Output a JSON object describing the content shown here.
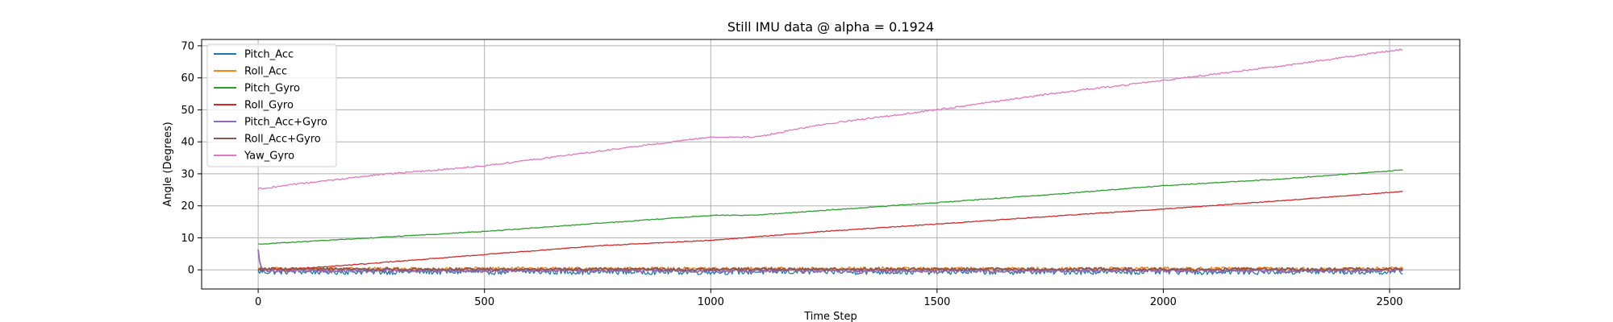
{
  "chart_data": {
    "type": "line",
    "title": "Still IMU data @ alpha = 0.1924",
    "xlabel": "Time Step",
    "ylabel": "Angle (Degrees)",
    "xlim": [
      -125,
      2655
    ],
    "ylim": [
      -6,
      72
    ],
    "xticks": [
      0,
      500,
      1000,
      1500,
      2000,
      2500
    ],
    "yticks": [
      0,
      10,
      20,
      30,
      40,
      50,
      60,
      70
    ],
    "grid": true,
    "legend_position": "upper-left",
    "n_steps": 2530,
    "series": [
      {
        "name": "Pitch_Acc",
        "color": "#1f77b4",
        "noise": 0.9,
        "anchors": [
          [
            0,
            -0.6
          ],
          [
            2530,
            -0.6
          ]
        ]
      },
      {
        "name": "Roll_Acc",
        "color": "#ff7f0e",
        "noise": 0.6,
        "anchors": [
          [
            0,
            0.3
          ],
          [
            2530,
            0.3
          ]
        ]
      },
      {
        "name": "Pitch_Gyro",
        "color": "#2ca02c",
        "noise": 0.12,
        "anchors": [
          [
            0,
            8
          ],
          [
            500,
            12
          ],
          [
            750,
            14.5
          ],
          [
            1000,
            17
          ],
          [
            1100,
            17.1
          ],
          [
            1500,
            21
          ],
          [
            1750,
            23.5
          ],
          [
            2000,
            26.3
          ],
          [
            2250,
            28.3
          ],
          [
            2530,
            31.2
          ]
        ]
      },
      {
        "name": "Roll_Gyro",
        "color": "#d62728",
        "noise": 0.12,
        "anchors": [
          [
            0,
            0
          ],
          [
            100,
            0.5
          ],
          [
            250,
            2
          ],
          [
            500,
            4.8
          ],
          [
            750,
            7.5
          ],
          [
            1000,
            9.2
          ],
          [
            1250,
            12
          ],
          [
            1500,
            14.3
          ],
          [
            1750,
            16.7
          ],
          [
            2000,
            19
          ],
          [
            2250,
            21.5
          ],
          [
            2530,
            24.5
          ]
        ]
      },
      {
        "name": "Pitch_Acc+Gyro",
        "color": "#9467bd",
        "noise": 0.5,
        "spike": 6.3,
        "anchors": [
          [
            0,
            -0.3
          ],
          [
            2530,
            -0.3
          ]
        ]
      },
      {
        "name": "Roll_Acc+Gyro",
        "color": "#8c564b",
        "noise": 0.45,
        "anchors": [
          [
            0,
            0.2
          ],
          [
            2530,
            0.2
          ]
        ]
      },
      {
        "name": "Yaw_Gyro",
        "color": "#e377c2",
        "noise": 0.25,
        "anchors": [
          [
            0,
            25.3
          ],
          [
            250,
            29.5
          ],
          [
            500,
            32.5
          ],
          [
            750,
            37
          ],
          [
            1000,
            41.5
          ],
          [
            1100,
            41.5
          ],
          [
            1250,
            45.5
          ],
          [
            1500,
            50
          ],
          [
            1750,
            55
          ],
          [
            2000,
            59.2
          ],
          [
            2250,
            63.5
          ],
          [
            2530,
            69
          ]
        ]
      }
    ]
  }
}
